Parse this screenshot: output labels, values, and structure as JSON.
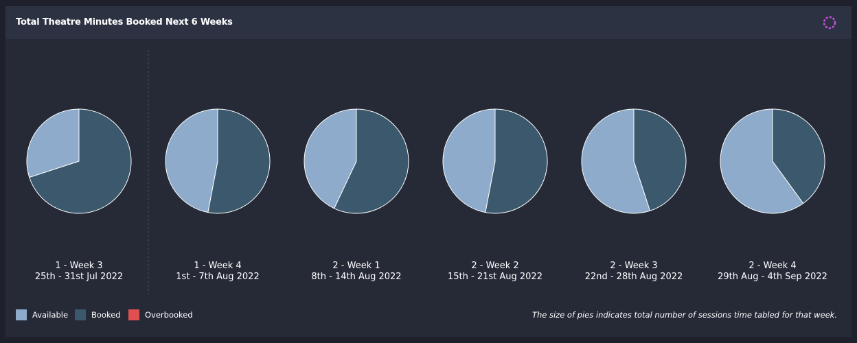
{
  "header": {
    "title": "Total Theatre Minutes Booked Next 6 Weeks",
    "loading_icon": "spinner-icon"
  },
  "colors": {
    "available": "#8eabcc",
    "booked": "#3b586d",
    "overbooked": "#e05050",
    "spinner": "#c44fe0"
  },
  "legend": [
    {
      "label": "Available",
      "color": "#8eabcc"
    },
    {
      "label": "Booked",
      "color": "#3b586d"
    },
    {
      "label": "Overbooked",
      "color": "#e05050"
    }
  ],
  "footnote": "The size of pies indicates total number of sessions time tabled for that week.",
  "chart_data": {
    "type": "pie",
    "series_names": [
      "Available",
      "Booked",
      "Overbooked"
    ],
    "pies": [
      {
        "week": "1 - Week 3",
        "dates": "25th - 31st Jul 2022",
        "booked_share": 0.7,
        "available_share": 0.3
      },
      {
        "week": "1 - Week 4",
        "dates": "1st - 7th Aug 2022",
        "booked_share": 0.53,
        "available_share": 0.47
      },
      {
        "week": "2 - Week 1",
        "dates": "8th - 14th Aug 2022",
        "booked_share": 0.57,
        "available_share": 0.43
      },
      {
        "week": "2 - Week 2",
        "dates": "15th - 21st Aug 2022",
        "booked_share": 0.53,
        "available_share": 0.47
      },
      {
        "week": "2 - Week 3",
        "dates": "22nd - 28th Aug 2022",
        "booked_share": 0.45,
        "available_share": 0.55
      },
      {
        "week": "2 - Week 4",
        "dates": "29th Aug - 4th Sep 2022",
        "booked_share": 0.4,
        "available_share": 0.6
      }
    ],
    "divider_after_index": 0,
    "legend_position": "bottom-left"
  }
}
